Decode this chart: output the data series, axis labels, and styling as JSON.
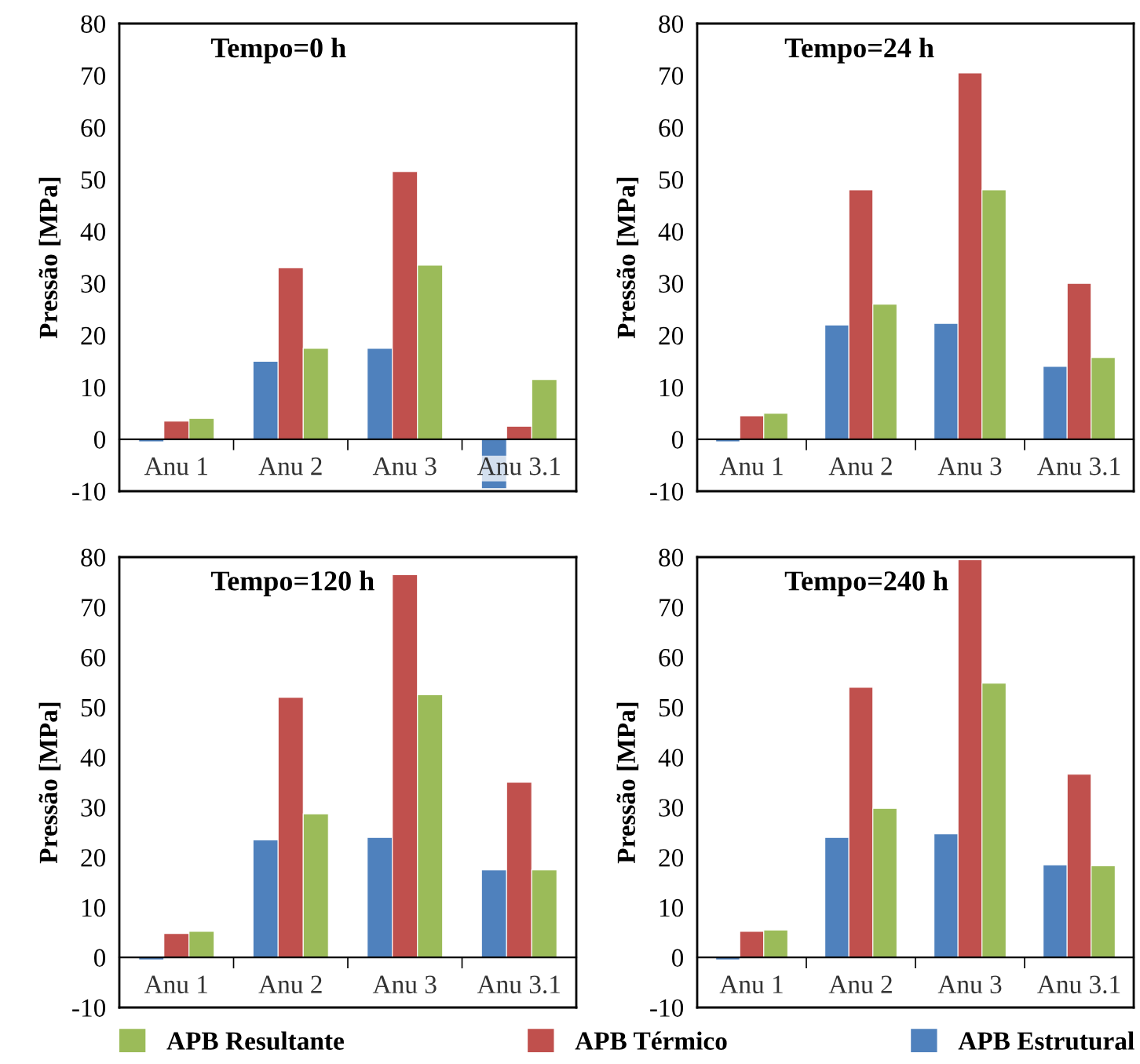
{
  "chart_data": [
    {
      "type": "bar",
      "title": "Tempo=0 h",
      "ylabel": "Pressão [MPa]",
      "categories": [
        "Anu 1",
        "Anu 2",
        "Anu 3",
        "Anu 3.1"
      ],
      "ylim": [
        -10,
        80
      ],
      "yticks": [
        -10,
        0,
        10,
        20,
        30,
        40,
        50,
        60,
        70,
        80
      ],
      "legend": "bottom",
      "series": [
        {
          "name": "APB Estrutural",
          "color": "#4f81bd",
          "values": [
            -0.5,
            15,
            17.5,
            -9.5
          ]
        },
        {
          "name": "APB Térmico",
          "color": "#c0504d",
          "values": [
            3.5,
            33,
            51.5,
            2.5
          ]
        },
        {
          "name": "APB Resultante",
          "color": "#9bbb59",
          "values": [
            4,
            17.5,
            33.5,
            11.5
          ]
        }
      ]
    },
    {
      "type": "bar",
      "title": "Tempo=24 h",
      "ylabel": "Pressão [MPa]",
      "categories": [
        "Anu 1",
        "Anu 2",
        "Anu 3",
        "Anu 3.1"
      ],
      "ylim": [
        -10,
        80
      ],
      "yticks": [
        -10,
        0,
        10,
        20,
        30,
        40,
        50,
        60,
        70,
        80
      ],
      "series": [
        {
          "color": "#4f81bd",
          "values": [
            -0.5,
            22,
            22.3,
            14
          ]
        },
        {
          "color": "#c0504d",
          "values": [
            4.5,
            48,
            70.5,
            30
          ]
        },
        {
          "color": "#9bbb59",
          "values": [
            5,
            26,
            48,
            15.7
          ]
        }
      ]
    },
    {
      "type": "bar",
      "title": "Tempo=120 h",
      "ylabel": "Pressão [MPa]",
      "categories": [
        "Anu 1",
        "Anu 2",
        "Anu 3",
        "Anu 3.1"
      ],
      "ylim": [
        -10,
        80
      ],
      "yticks": [
        -10,
        0,
        10,
        20,
        30,
        40,
        50,
        60,
        70,
        80
      ],
      "series": [
        {
          "color": "#4f81bd",
          "values": [
            -0.5,
            23.5,
            24,
            17.5
          ]
        },
        {
          "color": "#c0504d",
          "values": [
            4.8,
            52,
            76.5,
            35
          ]
        },
        {
          "color": "#9bbb59",
          "values": [
            5.2,
            28.7,
            52.5,
            17.5
          ]
        }
      ]
    },
    {
      "type": "bar",
      "title": "Tempo=240 h",
      "ylabel": "Pressão [MPa]",
      "categories": [
        "Anu 1",
        "Anu 2",
        "Anu 3",
        "Anu 3.1"
      ],
      "ylim": [
        -10,
        80
      ],
      "yticks": [
        -10,
        0,
        10,
        20,
        30,
        40,
        50,
        60,
        70,
        80
      ],
      "series": [
        {
          "color": "#4f81bd",
          "values": [
            -0.5,
            24,
            24.7,
            18.5
          ]
        },
        {
          "color": "#c0504d",
          "values": [
            5.2,
            54,
            79.5,
            36.6
          ]
        },
        {
          "color": "#9bbb59",
          "values": [
            5.5,
            29.8,
            54.8,
            18.3
          ]
        }
      ]
    }
  ]
}
